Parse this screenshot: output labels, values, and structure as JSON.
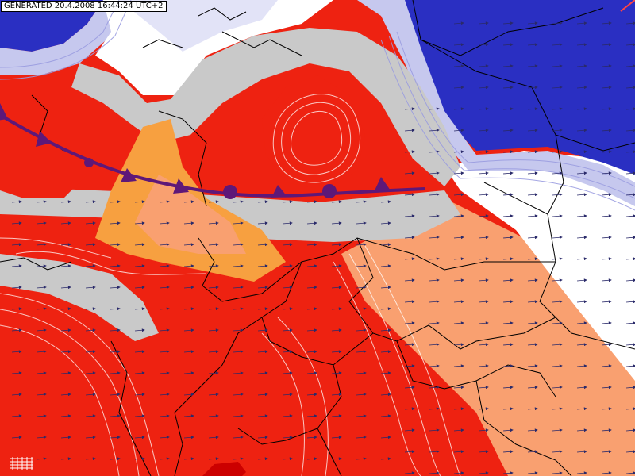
{
  "header": {
    "generated_stamp": "GENERATED 20.4.2008 16:44:24 UTC+2"
  },
  "colors": {
    "cold_deep": "#2a2fc2",
    "cold_mid": "#6f73cc",
    "cold_light": "#c6c8ee",
    "neutral_grey": "#c9c9c9",
    "warm_light": "#f9a070",
    "warm_orange": "#f7a040",
    "warm_red": "#ee2211",
    "warm_dark": "#cc0000",
    "front_purple": "#5e1878",
    "wind_arrow": "#2a2a6a",
    "border": "#000000",
    "contour": "#ffffff"
  },
  "layers": {
    "front": {
      "type": "cold-warm stationary front"
    },
    "wind_field": {
      "glyph": "arrow-icon",
      "direction": "east"
    },
    "borders": {
      "style": "national-borders-black"
    }
  }
}
